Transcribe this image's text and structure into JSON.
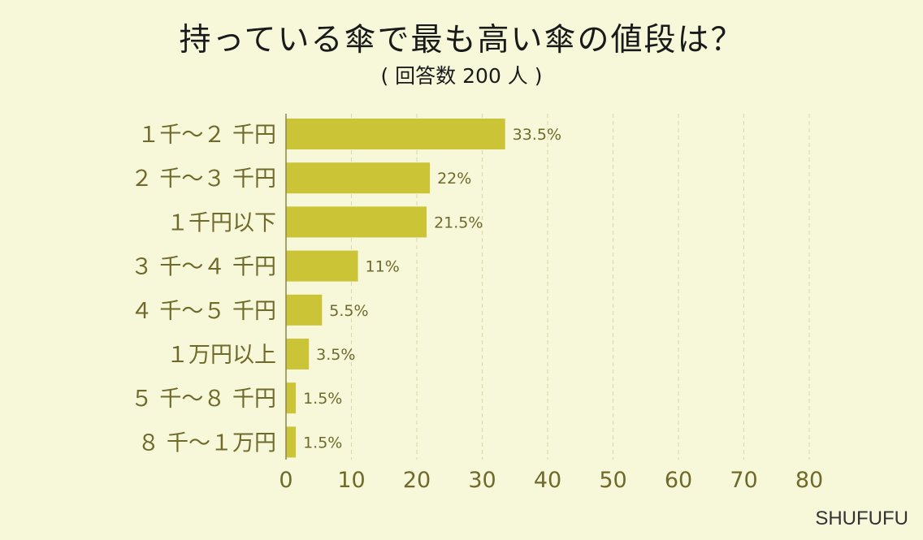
{
  "chart_data": {
    "type": "bar",
    "orientation": "horizontal",
    "title": "持っている傘で最も高い傘の値段は？",
    "subtitle": "( 回答数 200 人 )",
    "categories": [
      "１千～２ 千円",
      "２ 千～３ 千円",
      "１千円以下",
      "３ 千～４ 千円",
      "４ 千～５ 千円",
      "１万円以上",
      "５ 千～８ 千円",
      "８ 千～１万円"
    ],
    "values": [
      33.5,
      22,
      21.5,
      11,
      5.5,
      3.5,
      1.5,
      1.5
    ],
    "value_labels": [
      "33.5%",
      "22%",
      "21.5%",
      "11%",
      "5.5%",
      "3.5%",
      "1.5%",
      "1.5%"
    ],
    "xlim": [
      0,
      80
    ],
    "xticks": [
      0,
      10,
      20,
      30,
      40,
      50,
      60,
      70,
      80
    ],
    "grid": true,
    "bar_color": "#cbc437"
  },
  "brand": "SHUFUFU"
}
